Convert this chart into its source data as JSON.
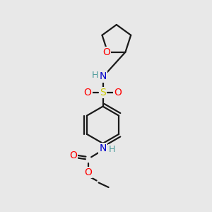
{
  "background_color": "#e8e8e8",
  "bond_color": "#1a1a1a",
  "atom_colors": {
    "O": "#ff0000",
    "N": "#0000cd",
    "S": "#cccc00",
    "H": "#4a9a9a",
    "C": "#1a1a1a"
  },
  "figsize": [
    3.0,
    3.0
  ],
  "dpi": 100,
  "lw": 1.6,
  "fs": 10,
  "fs_small": 9
}
